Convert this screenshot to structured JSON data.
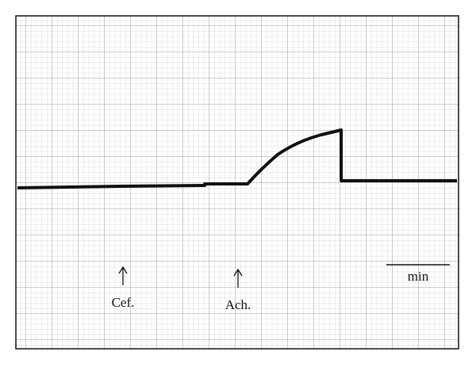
{
  "annotations": [
    {
      "label": "Cef."
    },
    {
      "label": "Ach."
    }
  ],
  "scale_bar": {
    "label": "min"
  }
}
